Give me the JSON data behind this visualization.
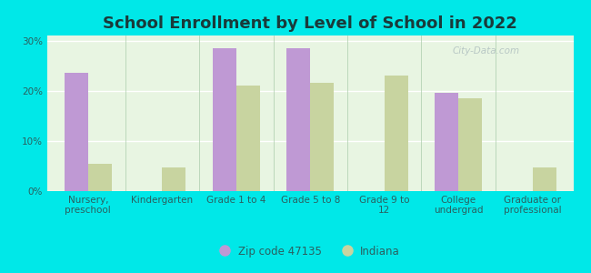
{
  "title": "School Enrollment by Level of School in 2022",
  "categories": [
    "Nursery,\npreschool",
    "Kindergarten",
    "Grade 1 to 4",
    "Grade 5 to 8",
    "Grade 9 to\n12",
    "College\nundergrad",
    "Graduate or\nprofessional"
  ],
  "zip_values": [
    23.5,
    0,
    28.5,
    28.5,
    0,
    19.5,
    0
  ],
  "indiana_values": [
    5.5,
    4.8,
    21.0,
    21.5,
    23.0,
    18.5,
    4.8
  ],
  "zip_color": "#bf99d4",
  "indiana_color": "#c8d4a0",
  "background_outer": "#00e8e8",
  "background_inner": "#e8f5e2",
  "title_fontsize": 13,
  "tick_fontsize": 7.5,
  "label_color": "#2a6060",
  "legend_label_zip": "Zip code 47135",
  "legend_label_indiana": "Indiana",
  "ylim": [
    0,
    31
  ],
  "yticks": [
    0,
    10,
    20,
    30
  ],
  "ytick_labels": [
    "0%",
    "10%",
    "20%",
    "30%"
  ],
  "bar_width": 0.32,
  "watermark": "City-Data.com"
}
